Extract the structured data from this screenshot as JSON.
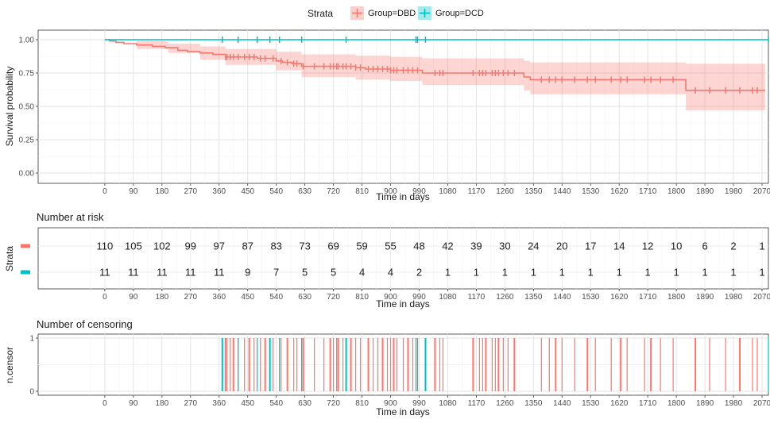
{
  "legend": {
    "title": "Strata",
    "items": [
      {
        "label": "Group=DBD",
        "color": "#F8766D"
      },
      {
        "label": "Group=DCD",
        "color": "#00BFC4"
      }
    ]
  },
  "chart_data": [
    {
      "type": "line",
      "subtype": "kaplan-meier",
      "ylabel": "Survival probability",
      "xlabel": "Time in days",
      "xlim": [
        -210,
        2090
      ],
      "ylim": [
        0,
        1
      ],
      "x_ticks": [
        0,
        90,
        180,
        270,
        360,
        450,
        540,
        630,
        720,
        810,
        900,
        990,
        1080,
        1170,
        1260,
        1350,
        1440,
        1530,
        1620,
        1710,
        1800,
        1890,
        1980,
        2070
      ],
      "y_ticks": [
        0.0,
        0.25,
        0.5,
        0.75,
        1.0
      ],
      "y_tick_labels": [
        "0.00",
        "0.25",
        "0.50",
        "0.75",
        "1.00"
      ],
      "grid": true,
      "legend_position": "top",
      "series": [
        {
          "name": "Group=DBD",
          "color": "#F8766D",
          "steps": [
            [
              0,
              1.0
            ],
            [
              15,
              0.99
            ],
            [
              35,
              0.98
            ],
            [
              60,
              0.97
            ],
            [
              100,
              0.96
            ],
            [
              150,
              0.95
            ],
            [
              190,
              0.94
            ],
            [
              230,
              0.92
            ],
            [
              260,
              0.91
            ],
            [
              300,
              0.9
            ],
            [
              340,
              0.89
            ],
            [
              380,
              0.87
            ],
            [
              480,
              0.86
            ],
            [
              540,
              0.84
            ],
            [
              560,
              0.83
            ],
            [
              590,
              0.82
            ],
            [
              620,
              0.8
            ],
            [
              790,
              0.79
            ],
            [
              820,
              0.78
            ],
            [
              900,
              0.77
            ],
            [
              1000,
              0.75
            ],
            [
              1320,
              0.72
            ],
            [
              1340,
              0.7
            ],
            [
              1830,
              0.62
            ]
          ],
          "end_x": 2080,
          "ci_upper": [
            [
              0,
              1.0
            ],
            [
              100,
              0.99
            ],
            [
              200,
              0.97
            ],
            [
              300,
              0.95
            ],
            [
              380,
              0.93
            ],
            [
              540,
              0.91
            ],
            [
              620,
              0.89
            ],
            [
              790,
              0.88
            ],
            [
              900,
              0.87
            ],
            [
              1000,
              0.86
            ],
            [
              1320,
              0.84
            ],
            [
              1340,
              0.83
            ],
            [
              1830,
              0.82
            ]
          ],
          "ci_lower": [
            [
              0,
              1.0
            ],
            [
              100,
              0.93
            ],
            [
              200,
              0.9
            ],
            [
              300,
              0.85
            ],
            [
              380,
              0.81
            ],
            [
              540,
              0.77
            ],
            [
              620,
              0.72
            ],
            [
              790,
              0.7
            ],
            [
              900,
              0.69
            ],
            [
              1000,
              0.66
            ],
            [
              1320,
              0.62
            ],
            [
              1340,
              0.59
            ],
            [
              1830,
              0.47
            ]
          ],
          "censor_x": [
            380,
            385,
            395,
            405,
            420,
            440,
            455,
            470,
            490,
            505,
            530,
            555,
            575,
            595,
            605,
            625,
            660,
            690,
            710,
            720,
            730,
            735,
            750,
            760,
            775,
            790,
            805,
            830,
            845,
            860,
            875,
            890,
            900,
            910,
            920,
            940,
            955,
            970,
            985,
            1040,
            1055,
            1065,
            1160,
            1180,
            1190,
            1200,
            1220,
            1230,
            1240,
            1255,
            1270,
            1290,
            1375,
            1400,
            1420,
            1440,
            1480,
            1520,
            1545,
            1595,
            1625,
            1645,
            1700,
            1720,
            1750,
            1790,
            1860,
            1905,
            1955,
            2000,
            2040,
            2055
          ]
        },
        {
          "name": "Group=DCD",
          "color": "#00BFC4",
          "steps": [
            [
              0,
              1.0
            ]
          ],
          "end_x": 2090,
          "censor_x": [
            370,
            420,
            480,
            520,
            550,
            620,
            760,
            980,
            985,
            1010,
            2090
          ]
        }
      ]
    },
    {
      "type": "table",
      "title": "Number at risk",
      "ylabel": "Strata",
      "xlabel": "Time in days",
      "x": [
        0,
        90,
        180,
        270,
        360,
        450,
        540,
        630,
        720,
        810,
        900,
        990,
        1080,
        1170,
        1260,
        1350,
        1440,
        1530,
        1620,
        1710,
        1800,
        1890,
        1980,
        2070
      ],
      "rows": [
        {
          "name": "Group=DBD",
          "color": "#F8766D",
          "values": [
            110,
            105,
            102,
            99,
            97,
            87,
            83,
            73,
            69,
            59,
            55,
            48,
            42,
            39,
            30,
            24,
            20,
            17,
            14,
            12,
            10,
            6,
            2,
            1
          ]
        },
        {
          "name": "Group=DCD",
          "color": "#00BFC4",
          "values": [
            11,
            11,
            11,
            11,
            11,
            9,
            7,
            5,
            5,
            4,
            4,
            2,
            1,
            1,
            1,
            1,
            1,
            1,
            1,
            1,
            1,
            1,
            1,
            1
          ]
        }
      ]
    },
    {
      "type": "bar",
      "subtype": "censoring-events",
      "title": "Number of censoring",
      "ylabel": "n.censor",
      "xlabel": "Time in days",
      "y_ticks": [
        0,
        1
      ],
      "ylim": [
        0,
        1
      ],
      "note": "each vertical line is one censoring event (n = 1)"
    }
  ]
}
